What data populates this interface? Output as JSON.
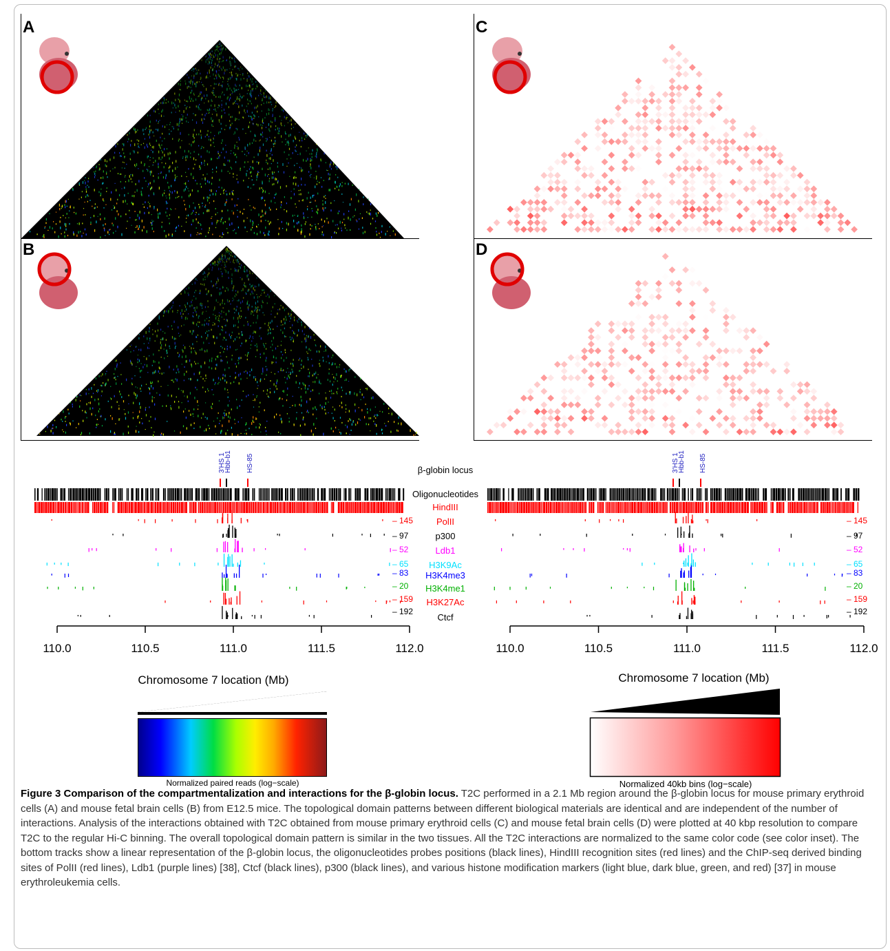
{
  "panels": {
    "A": {
      "letter": "A"
    },
    "B": {
      "letter": "B"
    },
    "C": {
      "letter": "C"
    },
    "D": {
      "letter": "D"
    }
  },
  "locus_labels": [
    "3'HS 1",
    "Hbb-b1",
    "HS-85"
  ],
  "track_labels": {
    "locus": "β-globin locus",
    "oligos": "Oligonucleotides",
    "hindiii": "HindIII",
    "polii": "PolII",
    "p300": "p300",
    "ldb1": "Ldb1",
    "h3k9ac": "H3K9Ac",
    "h3k4me3": "H3K4me3",
    "h3k4me1": "H3K4me1",
    "h3k27ac": "H3K27Ac",
    "ctcf": "Ctcf"
  },
  "track_scales": [
    "145",
    "97",
    "52",
    "65",
    "83",
    "20",
    "159",
    "192"
  ],
  "track_colors": [
    "#ff0000",
    "#000000",
    "#ff00ff",
    "#00e0ff",
    "#0000ff",
    "#00b000",
    "#ff0000",
    "#000000"
  ],
  "axis": {
    "ticks": [
      "110.0",
      "110.5",
      "111.0",
      "111.5",
      "112.0"
    ],
    "title": "Chromosome 7 location (Mb)"
  },
  "colorbars": {
    "left_label": "Normalized paired reads (log−scale)",
    "right_label": "Normalized 40kb bins (log−scale)"
  },
  "caption": {
    "title": "Figure 3 Comparison of the compartmentalization and interactions for the β-globin locus.",
    "body": " T2C performed in a 2.1 Mb region around the β-globin locus for mouse primary erythroid cells (A) and mouse fetal brain cells (B) from E12.5 mice. The topological domain patterns between different biological materials are identical and are independent of the number of interactions. Analysis of the interactions obtained with T2C obtained from mouse primary erythroid cells (C) and mouse fetal brain cells (D) were plotted at 40 kbp resolution to compare T2C to the regular Hi-C binning. The overall topological domain pattern is similar in the two tissues. All the T2C interactions are normalized to the same color code (see color inset). The bottom tracks show a linear representation of the β-globin locus, the oligonucleotides probes positions (black lines), HindIII recognition sites (red lines) and the ChIP-seq derived binding sites of PolII (red lines), Ldb1 (purple lines) [38], Ctcf (black lines), p300 (black lines), and various histone modification markers (light blue, dark blue, green, and red) [37] in mouse erythroleukemia cells."
  }
}
